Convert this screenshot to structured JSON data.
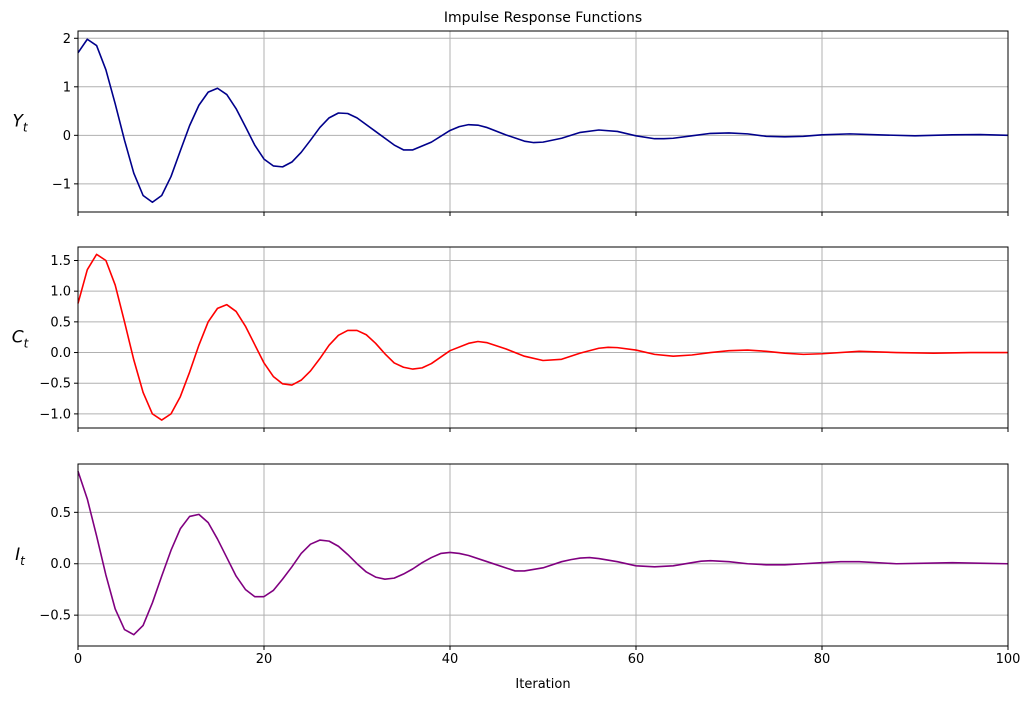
{
  "chart_data": {
    "type": "line",
    "title": "Impulse Response Functions",
    "xlabel": "Iteration",
    "xlim": [
      0,
      100
    ],
    "xticks": [
      0,
      20,
      40,
      60,
      80,
      100
    ],
    "grid": true,
    "panels": [
      {
        "ylabel_base": "Y",
        "ylabel_sub": "t",
        "ylim": [
          -1.58,
          2.15
        ],
        "yticks": [
          2,
          1,
          0,
          -1
        ],
        "ytick_labels": [
          "2",
          "1",
          "0",
          "−1"
        ],
        "color": "#00008b",
        "x": [
          0,
          1,
          2,
          3,
          4,
          5,
          6,
          7,
          8,
          9,
          10,
          11,
          12,
          13,
          14,
          15,
          16,
          17,
          18,
          19,
          20,
          21,
          22,
          23,
          24,
          25,
          26,
          27,
          28,
          29,
          30,
          32,
          34,
          35,
          36,
          38,
          40,
          41,
          42,
          43,
          44,
          46,
          48,
          49,
          50,
          52,
          54,
          56,
          58,
          60,
          62,
          63,
          64,
          66,
          68,
          70,
          72,
          74,
          76,
          78,
          80,
          83,
          86,
          90,
          94,
          97,
          100
        ],
        "y": [
          1.7,
          1.98,
          1.85,
          1.35,
          0.65,
          -0.1,
          -0.78,
          -1.24,
          -1.38,
          -1.24,
          -0.85,
          -0.32,
          0.2,
          0.62,
          0.89,
          0.97,
          0.84,
          0.55,
          0.18,
          -0.2,
          -0.49,
          -0.63,
          -0.65,
          -0.55,
          -0.35,
          -0.1,
          0.16,
          0.36,
          0.46,
          0.45,
          0.36,
          0.08,
          -0.2,
          -0.3,
          -0.3,
          -0.14,
          0.1,
          0.18,
          0.22,
          0.21,
          0.16,
          0.01,
          -0.12,
          -0.15,
          -0.14,
          -0.06,
          0.06,
          0.11,
          0.08,
          -0.01,
          -0.07,
          -0.07,
          -0.06,
          -0.01,
          0.04,
          0.05,
          0.03,
          -0.02,
          -0.03,
          -0.02,
          0.01,
          0.03,
          0.01,
          -0.01,
          0.01,
          0.015,
          0.0
        ]
      },
      {
        "ylabel_base": "C",
        "ylabel_sub": "t",
        "ylim": [
          -1.23,
          1.72
        ],
        "yticks": [
          1.5,
          1.0,
          0.5,
          0.0,
          -0.5,
          -1.0
        ],
        "ytick_labels": [
          "1.5",
          "1.0",
          "0.5",
          "0.0",
          "−0.5",
          "−1.0"
        ],
        "color": "#ff0000",
        "x": [
          0,
          1,
          2,
          3,
          4,
          5,
          6,
          7,
          8,
          9,
          10,
          11,
          12,
          13,
          14,
          15,
          16,
          17,
          18,
          19,
          20,
          21,
          22,
          23,
          24,
          25,
          26,
          27,
          28,
          29,
          30,
          31,
          32,
          33,
          34,
          35,
          36,
          37,
          38,
          40,
          42,
          43,
          44,
          46,
          48,
          50,
          52,
          54,
          56,
          57,
          58,
          60,
          62,
          64,
          66,
          68,
          70,
          72,
          74,
          76,
          78,
          80,
          84,
          88,
          92,
          96,
          100
        ],
        "y": [
          0.8,
          1.35,
          1.6,
          1.5,
          1.1,
          0.5,
          -0.12,
          -0.65,
          -1.0,
          -1.1,
          -1.0,
          -0.72,
          -0.32,
          0.12,
          0.5,
          0.72,
          0.78,
          0.67,
          0.43,
          0.13,
          -0.17,
          -0.39,
          -0.51,
          -0.53,
          -0.45,
          -0.3,
          -0.1,
          0.12,
          0.28,
          0.36,
          0.36,
          0.29,
          0.15,
          -0.02,
          -0.17,
          -0.24,
          -0.27,
          -0.25,
          -0.18,
          0.03,
          0.15,
          0.18,
          0.16,
          0.06,
          -0.06,
          -0.13,
          -0.11,
          -0.01,
          0.07,
          0.085,
          0.08,
          0.04,
          -0.03,
          -0.06,
          -0.04,
          0.0,
          0.03,
          0.04,
          0.02,
          -0.01,
          -0.03,
          -0.02,
          0.02,
          0.0,
          -0.01,
          0.0,
          0.0
        ]
      },
      {
        "ylabel_base": "I",
        "ylabel_sub": "t",
        "ylim": [
          -0.8,
          0.97
        ],
        "yticks": [
          0.5,
          0.0,
          -0.5
        ],
        "ytick_labels": [
          "0.5",
          "0.0",
          "−0.5"
        ],
        "color": "#800080",
        "x": [
          0,
          1,
          2,
          3,
          4,
          5,
          6,
          7,
          8,
          9,
          10,
          11,
          12,
          13,
          14,
          15,
          16,
          17,
          18,
          19,
          20,
          21,
          22,
          23,
          24,
          25,
          26,
          27,
          28,
          29,
          30,
          31,
          32,
          33,
          34,
          35,
          36,
          37,
          38,
          39,
          40,
          41,
          42,
          44,
          46,
          47,
          48,
          50,
          52,
          53,
          54,
          55,
          56,
          58,
          60,
          62,
          64,
          66,
          67,
          68,
          70,
          72,
          74,
          76,
          78,
          80,
          82,
          84,
          88,
          94,
          100
        ],
        "y": [
          0.9,
          0.63,
          0.27,
          -0.11,
          -0.44,
          -0.64,
          -0.69,
          -0.6,
          -0.38,
          -0.12,
          0.13,
          0.34,
          0.46,
          0.48,
          0.4,
          0.24,
          0.06,
          -0.12,
          -0.25,
          -0.32,
          -0.32,
          -0.26,
          -0.15,
          -0.03,
          0.1,
          0.19,
          0.23,
          0.22,
          0.17,
          0.09,
          0.0,
          -0.08,
          -0.13,
          -0.15,
          -0.14,
          -0.1,
          -0.05,
          0.01,
          0.06,
          0.1,
          0.11,
          0.1,
          0.08,
          0.02,
          -0.04,
          -0.07,
          -0.07,
          -0.04,
          0.02,
          0.04,
          0.055,
          0.06,
          0.05,
          0.02,
          -0.02,
          -0.03,
          -0.02,
          0.01,
          0.025,
          0.03,
          0.02,
          0.0,
          -0.01,
          -0.01,
          0.0,
          0.01,
          0.02,
          0.02,
          0.0,
          0.01,
          0.0
        ]
      }
    ]
  }
}
